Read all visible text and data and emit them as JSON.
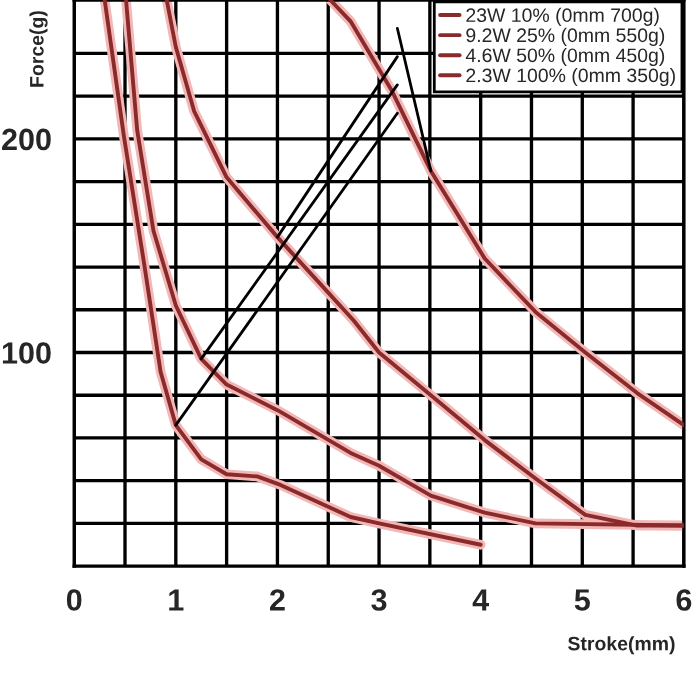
{
  "chart_data": {
    "type": "line",
    "xlabel": "Stroke(mm)",
    "ylabel": "Force(g)",
    "xlim": [
      0,
      6
    ],
    "ylim": [
      0,
      265
    ],
    "xticks": [
      0,
      {
        "value": 0.5,
        "label": null
      },
      1,
      {
        "value": 1.5,
        "label": null
      },
      2,
      {
        "value": 2.5,
        "label": null
      },
      3,
      {
        "value": 3.5,
        "label": null
      },
      4,
      {
        "value": 4.5,
        "label": null
      },
      5,
      {
        "value": 5.5,
        "label": null
      },
      6
    ],
    "yticks": [
      {
        "value": 20,
        "label": null
      },
      {
        "value": 40,
        "label": null
      },
      {
        "value": 60,
        "label": null
      },
      {
        "value": 80,
        "label": null
      },
      100,
      {
        "value": 120,
        "label": null
      },
      {
        "value": 140,
        "label": null
      },
      {
        "value": 160,
        "label": null
      },
      {
        "value": 180,
        "label": null
      },
      200,
      {
        "value": 220,
        "label": null
      },
      {
        "value": 240,
        "label": null
      }
    ],
    "grid": true,
    "legend": "top right",
    "marker": "none",
    "line_style": "solid",
    "series": [
      {
        "name": "23W 10% (0mm 700g)",
        "color": "#8b2a2a",
        "x": [
          2.52,
          2.72,
          3.12,
          3.51,
          4.04,
          4.54,
          5.03,
          5.54,
          6.0
        ],
        "values": [
          265,
          255,
          223,
          185,
          144,
          119,
          100,
          81,
          66
        ]
      },
      {
        "name": "9.2W 25% (0mm 550g)",
        "color": "#8b2a2a",
        "x": [
          0.91,
          1.0,
          1.18,
          1.5,
          2.0,
          2.5,
          2.75,
          3.0,
          3.51,
          4.04,
          4.54,
          5.03,
          5.54,
          6.0
        ],
        "values": [
          265,
          243,
          213,
          182,
          154,
          128,
          115,
          100,
          80,
          59,
          41,
          24,
          19,
          19
        ]
      },
      {
        "name": "4.6W 50% (0mm 450g)",
        "color": "#8b2a2a",
        "x": [
          0.51,
          0.62,
          0.78,
          1.0,
          1.25,
          1.5,
          2.0,
          2.72,
          3.0,
          3.51,
          4.04,
          4.54,
          6.0
        ],
        "values": [
          265,
          204,
          157,
          122,
          97,
          85,
          73,
          53,
          47,
          33,
          25,
          20,
          19
        ]
      },
      {
        "name": "2.3W 100% (0mm 350g)",
        "color": "#8b2a2a",
        "x": [
          0.3,
          0.49,
          0.69,
          0.85,
          1.0,
          1.25,
          1.5,
          1.8,
          2.03,
          2.72,
          3.0,
          4.0
        ],
        "values": [
          265,
          201,
          141,
          91,
          66,
          50,
          43,
          42,
          38,
          23,
          20,
          10
        ]
      }
    ]
  }
}
